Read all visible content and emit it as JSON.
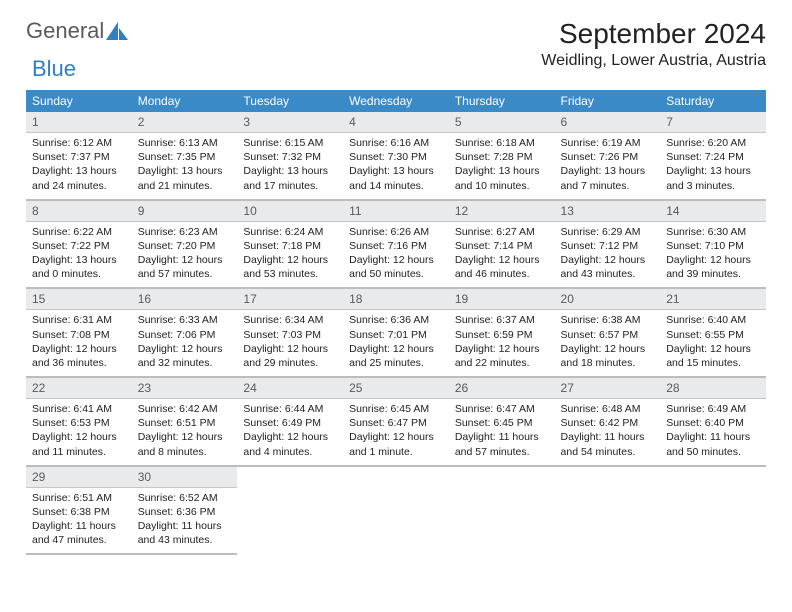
{
  "brand": {
    "part1": "General",
    "part2": "Blue"
  },
  "title": "September 2024",
  "location": "Weidling, Lower Austria, Austria",
  "colors": {
    "header_bg": "#3a8ac8",
    "header_fg": "#ffffff",
    "daynum_bg": "#e9eaeb",
    "daynum_fg": "#5a5a5a",
    "row_border": "#bcbcbc",
    "logo_grey": "#5a5a5a",
    "logo_blue": "#2f7fc2"
  },
  "weekdays": [
    "Sunday",
    "Monday",
    "Tuesday",
    "Wednesday",
    "Thursday",
    "Friday",
    "Saturday"
  ],
  "weeks": [
    [
      {
        "n": "1",
        "sr": "6:12 AM",
        "ss": "7:37 PM",
        "dl": "13 hours and 24 minutes."
      },
      {
        "n": "2",
        "sr": "6:13 AM",
        "ss": "7:35 PM",
        "dl": "13 hours and 21 minutes."
      },
      {
        "n": "3",
        "sr": "6:15 AM",
        "ss": "7:32 PM",
        "dl": "13 hours and 17 minutes."
      },
      {
        "n": "4",
        "sr": "6:16 AM",
        "ss": "7:30 PM",
        "dl": "13 hours and 14 minutes."
      },
      {
        "n": "5",
        "sr": "6:18 AM",
        "ss": "7:28 PM",
        "dl": "13 hours and 10 minutes."
      },
      {
        "n": "6",
        "sr": "6:19 AM",
        "ss": "7:26 PM",
        "dl": "13 hours and 7 minutes."
      },
      {
        "n": "7",
        "sr": "6:20 AM",
        "ss": "7:24 PM",
        "dl": "13 hours and 3 minutes."
      }
    ],
    [
      {
        "n": "8",
        "sr": "6:22 AM",
        "ss": "7:22 PM",
        "dl": "13 hours and 0 minutes."
      },
      {
        "n": "9",
        "sr": "6:23 AM",
        "ss": "7:20 PM",
        "dl": "12 hours and 57 minutes."
      },
      {
        "n": "10",
        "sr": "6:24 AM",
        "ss": "7:18 PM",
        "dl": "12 hours and 53 minutes."
      },
      {
        "n": "11",
        "sr": "6:26 AM",
        "ss": "7:16 PM",
        "dl": "12 hours and 50 minutes."
      },
      {
        "n": "12",
        "sr": "6:27 AM",
        "ss": "7:14 PM",
        "dl": "12 hours and 46 minutes."
      },
      {
        "n": "13",
        "sr": "6:29 AM",
        "ss": "7:12 PM",
        "dl": "12 hours and 43 minutes."
      },
      {
        "n": "14",
        "sr": "6:30 AM",
        "ss": "7:10 PM",
        "dl": "12 hours and 39 minutes."
      }
    ],
    [
      {
        "n": "15",
        "sr": "6:31 AM",
        "ss": "7:08 PM",
        "dl": "12 hours and 36 minutes."
      },
      {
        "n": "16",
        "sr": "6:33 AM",
        "ss": "7:06 PM",
        "dl": "12 hours and 32 minutes."
      },
      {
        "n": "17",
        "sr": "6:34 AM",
        "ss": "7:03 PM",
        "dl": "12 hours and 29 minutes."
      },
      {
        "n": "18",
        "sr": "6:36 AM",
        "ss": "7:01 PM",
        "dl": "12 hours and 25 minutes."
      },
      {
        "n": "19",
        "sr": "6:37 AM",
        "ss": "6:59 PM",
        "dl": "12 hours and 22 minutes."
      },
      {
        "n": "20",
        "sr": "6:38 AM",
        "ss": "6:57 PM",
        "dl": "12 hours and 18 minutes."
      },
      {
        "n": "21",
        "sr": "6:40 AM",
        "ss": "6:55 PM",
        "dl": "12 hours and 15 minutes."
      }
    ],
    [
      {
        "n": "22",
        "sr": "6:41 AM",
        "ss": "6:53 PM",
        "dl": "12 hours and 11 minutes."
      },
      {
        "n": "23",
        "sr": "6:42 AM",
        "ss": "6:51 PM",
        "dl": "12 hours and 8 minutes."
      },
      {
        "n": "24",
        "sr": "6:44 AM",
        "ss": "6:49 PM",
        "dl": "12 hours and 4 minutes."
      },
      {
        "n": "25",
        "sr": "6:45 AM",
        "ss": "6:47 PM",
        "dl": "12 hours and 1 minute."
      },
      {
        "n": "26",
        "sr": "6:47 AM",
        "ss": "6:45 PM",
        "dl": "11 hours and 57 minutes."
      },
      {
        "n": "27",
        "sr": "6:48 AM",
        "ss": "6:42 PM",
        "dl": "11 hours and 54 minutes."
      },
      {
        "n": "28",
        "sr": "6:49 AM",
        "ss": "6:40 PM",
        "dl": "11 hours and 50 minutes."
      }
    ],
    [
      {
        "n": "29",
        "sr": "6:51 AM",
        "ss": "6:38 PM",
        "dl": "11 hours and 47 minutes."
      },
      {
        "n": "30",
        "sr": "6:52 AM",
        "ss": "6:36 PM",
        "dl": "11 hours and 43 minutes."
      },
      null,
      null,
      null,
      null,
      null
    ]
  ],
  "labels": {
    "sunrise": "Sunrise:",
    "sunset": "Sunset:",
    "daylight": "Daylight:"
  }
}
